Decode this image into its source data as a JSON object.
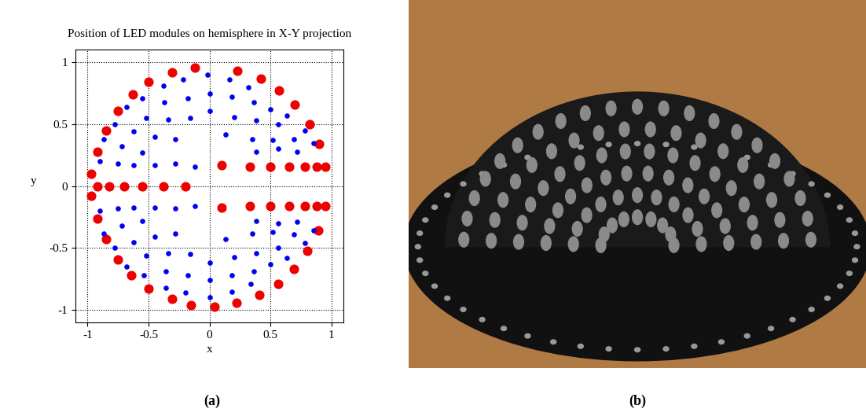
{
  "chart_data": {
    "type": "scatter",
    "title": "Position of LED modules on hemisphere in X-Y projection",
    "x_label": "x",
    "y_label": "y",
    "caption": "(a)",
    "xlim": [
      -1.1,
      1.1
    ],
    "ylim": [
      -1.1,
      1.1
    ],
    "xticks": [
      -1,
      -0.5,
      0,
      0.5,
      1
    ],
    "yticks": [
      -1,
      -0.5,
      0,
      0.5,
      1
    ],
    "grid": true,
    "series": [
      {
        "color": "#ee0000",
        "marker": "o",
        "x": [
          -0.12,
          0.23,
          0.42,
          0.57,
          0.7,
          0.82,
          0.9,
          0.95,
          0.88,
          0.78,
          0.65,
          0.5,
          0.33,
          0.1,
          -0.31,
          -0.5,
          -0.63,
          -0.75,
          -0.85,
          -0.92,
          -0.97,
          -0.97,
          -0.92,
          -0.85,
          -0.75,
          -0.64,
          -0.5,
          -0.31,
          -0.15,
          0.04,
          0.22,
          0.41,
          0.56,
          0.69,
          0.8,
          0.89,
          0.95,
          0.88,
          0.78,
          0.65,
          0.5,
          0.33,
          0.1,
          -0.92,
          -0.82,
          -0.7,
          -0.55,
          -0.38,
          -0.2
        ],
        "y": [
          0.96,
          0.93,
          0.87,
          0.77,
          0.66,
          0.5,
          0.34,
          0.16,
          0.16,
          0.16,
          0.16,
          0.16,
          0.16,
          0.17,
          0.92,
          0.84,
          0.74,
          0.61,
          0.45,
          0.28,
          0.1,
          -0.08,
          -0.26,
          -0.43,
          -0.59,
          -0.72,
          -0.83,
          -0.91,
          -0.96,
          -0.97,
          -0.94,
          -0.88,
          -0.79,
          -0.67,
          -0.52,
          -0.36,
          -0.16,
          -0.16,
          -0.16,
          -0.16,
          -0.16,
          -0.16,
          -0.17,
          0,
          0,
          0,
          0,
          0,
          0
        ]
      },
      {
        "color": "#0000ee",
        "marker": "o",
        "x": [
          -0.38,
          -0.22,
          -0.02,
          0.16,
          0.32,
          -0.55,
          -0.37,
          -0.18,
          0.0,
          0.18,
          0.36,
          0.5,
          -0.68,
          -0.52,
          -0.34,
          -0.16,
          0.0,
          0.2,
          0.38,
          0.56,
          0.63,
          -0.78,
          -0.62,
          -0.45,
          -0.28,
          0.13,
          0.35,
          0.52,
          0.69,
          0.78,
          -0.87,
          -0.72,
          -0.55,
          0.38,
          0.56,
          0.72,
          0.85,
          -0.9,
          -0.75,
          -0.62,
          -0.45,
          -0.28,
          -0.12,
          -0.36,
          -0.2,
          0.0,
          0.18,
          0.34,
          -0.54,
          -0.36,
          -0.18,
          0.0,
          0.18,
          0.36,
          0.5,
          -0.68,
          -0.52,
          -0.34,
          -0.16,
          0.0,
          0.2,
          0.38,
          0.56,
          0.63,
          -0.78,
          -0.62,
          -0.45,
          -0.28,
          0.13,
          0.35,
          0.52,
          0.69,
          0.78,
          -0.87,
          -0.72,
          -0.55,
          0.38,
          0.56,
          0.72,
          0.85,
          -0.9,
          -0.75,
          -0.62,
          -0.45,
          -0.28,
          -0.12
        ],
        "y": [
          0.81,
          0.86,
          0.9,
          0.86,
          0.8,
          0.71,
          0.68,
          0.71,
          0.75,
          0.72,
          0.68,
          0.62,
          0.64,
          0.55,
          0.54,
          0.55,
          0.61,
          0.56,
          0.53,
          0.5,
          0.57,
          0.5,
          0.44,
          0.4,
          0.38,
          0.42,
          0.38,
          0.37,
          0.38,
          0.45,
          0.38,
          0.32,
          0.27,
          0.28,
          0.3,
          0.28,
          0.35,
          0.2,
          0.18,
          0.17,
          0.17,
          0.18,
          0.16,
          -0.82,
          -0.86,
          -0.9,
          -0.85,
          -0.79,
          -0.72,
          -0.69,
          -0.72,
          -0.76,
          -0.72,
          -0.69,
          -0.63,
          -0.65,
          -0.56,
          -0.54,
          -0.55,
          -0.62,
          -0.57,
          -0.54,
          -0.5,
          -0.58,
          -0.5,
          -0.45,
          -0.41,
          -0.38,
          -0.43,
          -0.38,
          -0.37,
          -0.39,
          -0.46,
          -0.38,
          -0.32,
          -0.28,
          -0.28,
          -0.3,
          -0.29,
          -0.36,
          -0.2,
          -0.18,
          -0.17,
          -0.17,
          -0.18,
          -0.16
        ]
      }
    ]
  },
  "photo": {
    "caption": "(b)"
  }
}
